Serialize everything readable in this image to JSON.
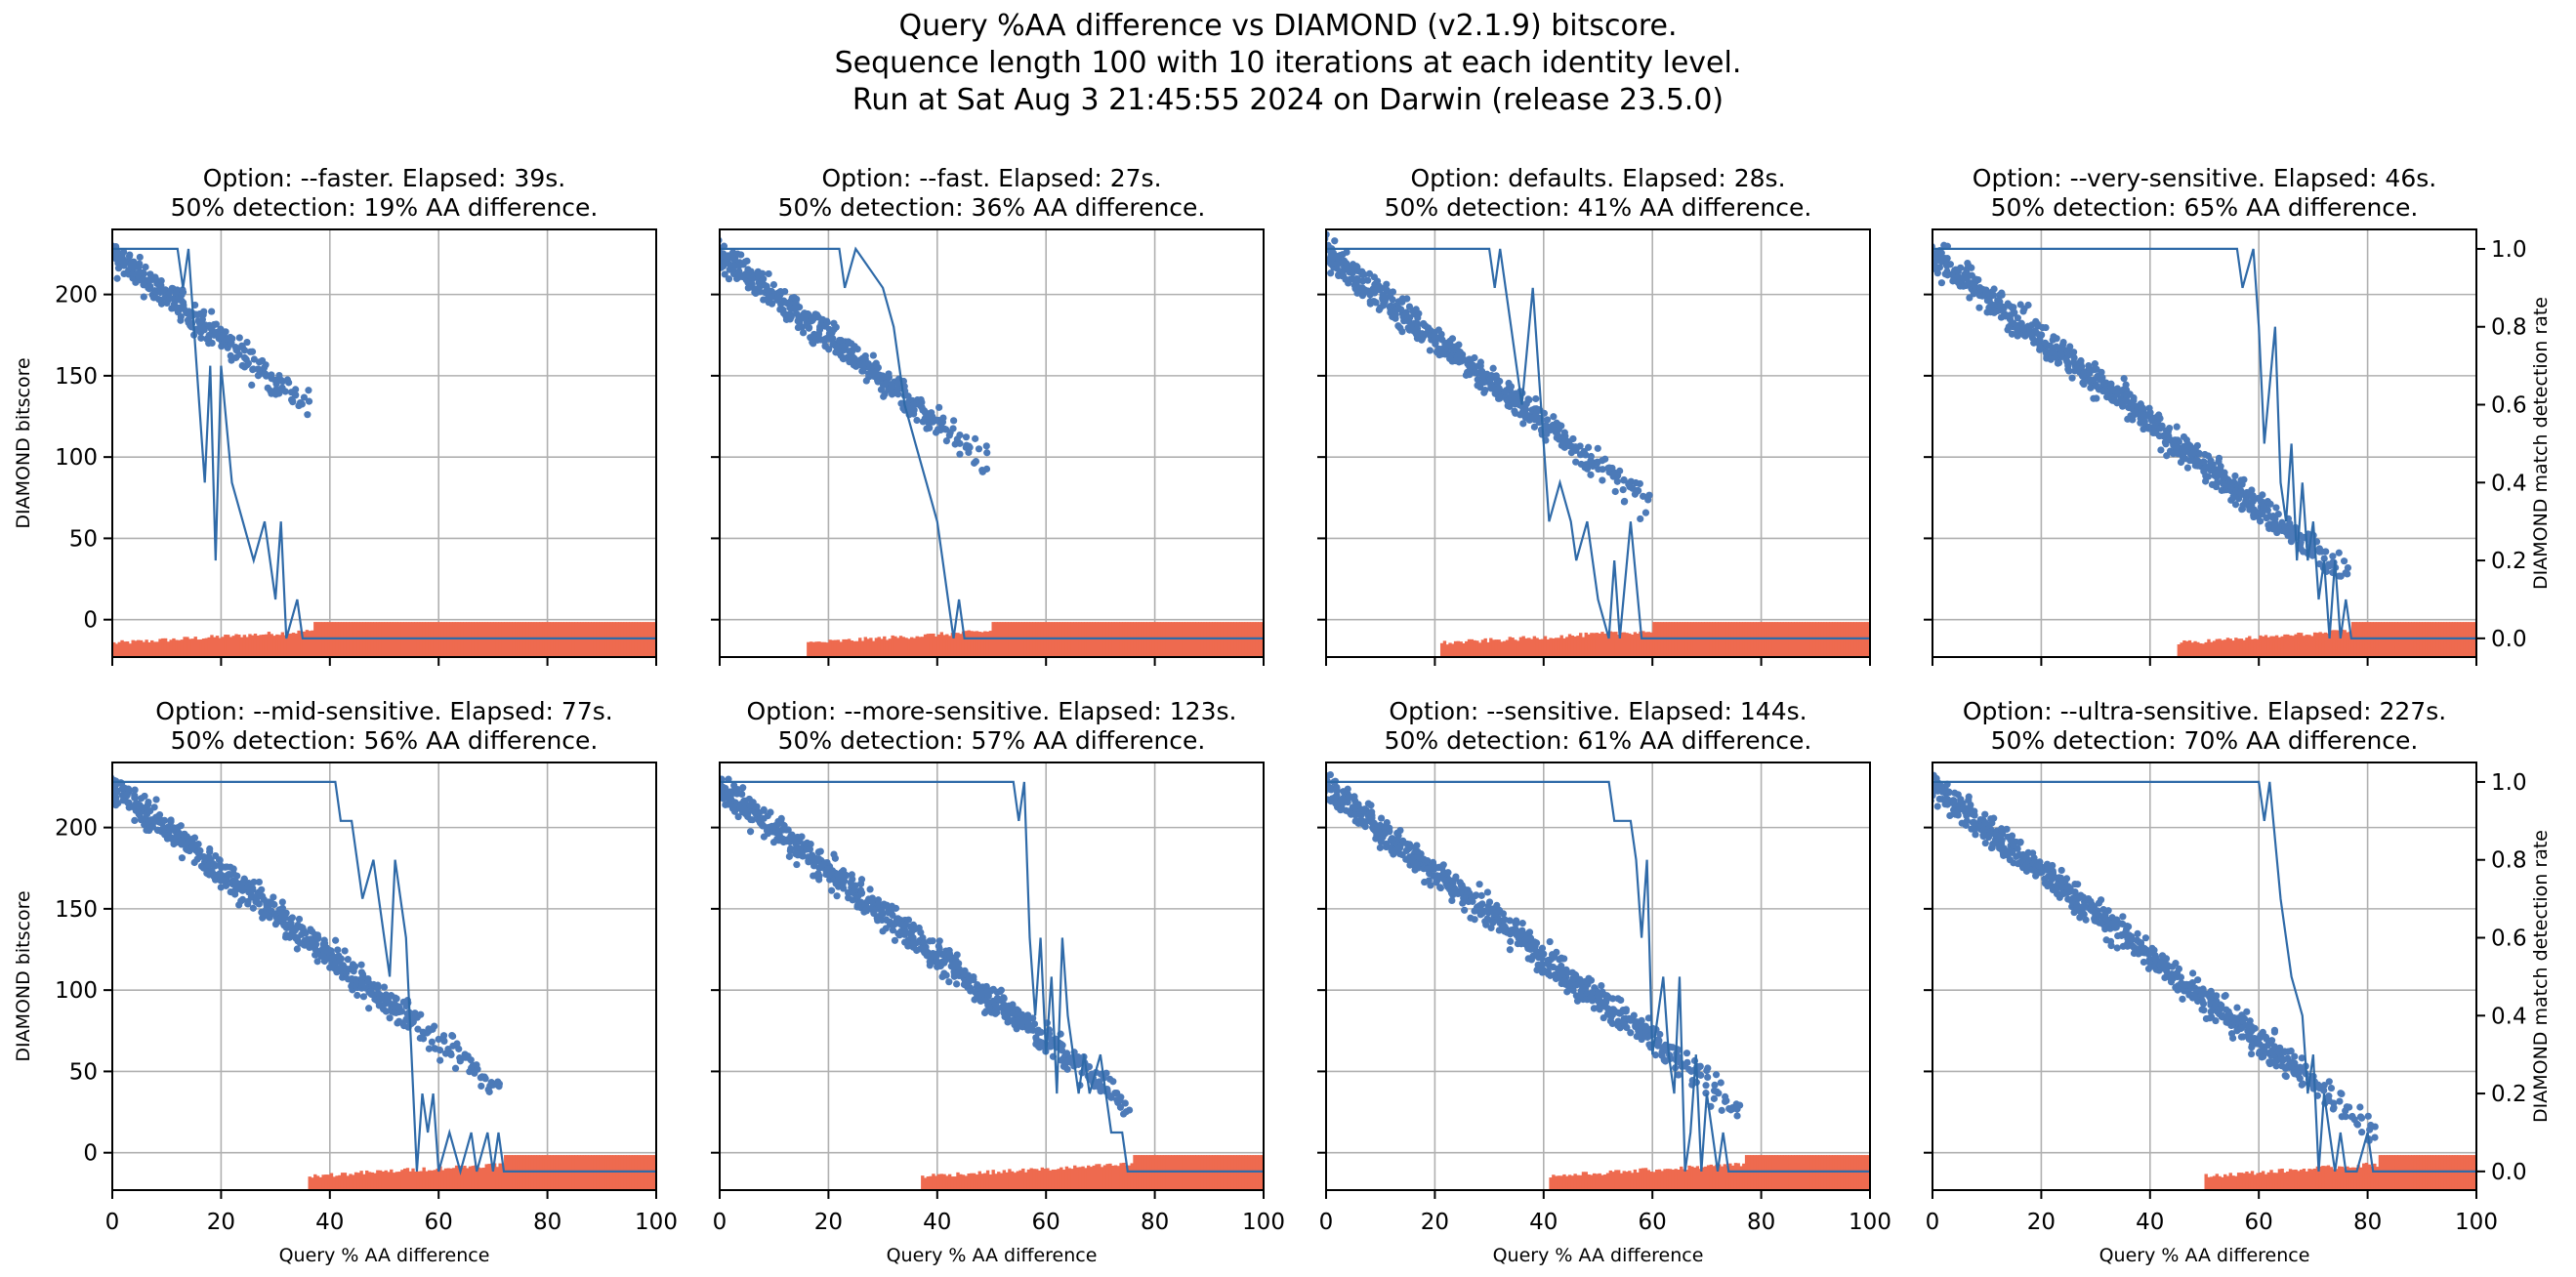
{
  "figure": {
    "suptitle": [
      "Query %AA difference vs DIAMOND (v2.1.9) bitscore.",
      "Sequence length 100 with 10 iterations at each identity level.",
      "Run at Sat Aug  3 21:45:55 2024 on Darwin (release 23.5.0)"
    ],
    "colors": {
      "scatter": "#4c7ab8",
      "line": "#2f6aa8",
      "bars": "#ee6a4f",
      "grid": "#b0b0b0"
    }
  },
  "chart_data": [
    {
      "type": "scatter+line+bar",
      "title": [
        "Option: --faster.  Elapsed: 39s.",
        "50% detection: 19% AA difference."
      ],
      "option": "--faster",
      "elapsed_s": 39,
      "detection50_pct": 19,
      "scatter_max_x": 36,
      "detection_rate": [
        [
          0,
          1.0
        ],
        [
          12,
          1.0
        ],
        [
          13,
          0.9
        ],
        [
          14,
          1.0
        ],
        [
          16,
          0.6
        ],
        [
          17,
          0.4
        ],
        [
          18,
          0.7
        ],
        [
          19,
          0.2
        ],
        [
          20,
          0.7
        ],
        [
          22,
          0.4
        ],
        [
          24,
          0.3
        ],
        [
          26,
          0.2
        ],
        [
          28,
          0.3
        ],
        [
          30,
          0.1
        ],
        [
          31,
          0.3
        ],
        [
          32,
          0.0
        ],
        [
          34,
          0.1
        ],
        [
          35,
          0.0
        ],
        [
          38,
          0.0
        ],
        [
          100,
          0.0
        ]
      ]
    },
    {
      "type": "scatter+line+bar",
      "title": [
        "Option: --fast.  Elapsed: 27s.",
        "50% detection: 36% AA difference."
      ],
      "option": "--fast",
      "elapsed_s": 27,
      "detection50_pct": 36,
      "scatter_max_x": 49,
      "detection_rate": [
        [
          0,
          1.0
        ],
        [
          22,
          1.0
        ],
        [
          23,
          0.9
        ],
        [
          25,
          1.0
        ],
        [
          30,
          0.9
        ],
        [
          32,
          0.8
        ],
        [
          34,
          0.6
        ],
        [
          36,
          0.5
        ],
        [
          38,
          0.4
        ],
        [
          40,
          0.3
        ],
        [
          41,
          0.2
        ],
        [
          42,
          0.1
        ],
        [
          43,
          0.0
        ],
        [
          44,
          0.1
        ],
        [
          45,
          0.0
        ],
        [
          48,
          0.0
        ],
        [
          100,
          0.0
        ]
      ]
    },
    {
      "type": "scatter+line+bar",
      "title": [
        "Option: defaults.  Elapsed: 28s.",
        "50% detection: 41% AA difference."
      ],
      "option": "defaults",
      "elapsed_s": 28,
      "detection50_pct": 41,
      "scatter_max_x": 59,
      "detection_rate": [
        [
          0,
          1.0
        ],
        [
          30,
          1.0
        ],
        [
          31,
          0.9
        ],
        [
          32,
          1.0
        ],
        [
          34,
          0.8
        ],
        [
          36,
          0.6
        ],
        [
          38,
          0.9
        ],
        [
          40,
          0.5
        ],
        [
          41,
          0.3
        ],
        [
          43,
          0.4
        ],
        [
          45,
          0.3
        ],
        [
          46,
          0.2
        ],
        [
          48,
          0.3
        ],
        [
          50,
          0.1
        ],
        [
          52,
          0.0
        ],
        [
          53,
          0.2
        ],
        [
          54,
          0.0
        ],
        [
          56,
          0.3
        ],
        [
          58,
          0.0
        ],
        [
          60,
          0.0
        ],
        [
          100,
          0.0
        ]
      ]
    },
    {
      "type": "scatter+line+bar",
      "title": [
        "Option: --very-sensitive.  Elapsed: 46s.",
        "50% detection: 65% AA difference."
      ],
      "option": "--very-sensitive",
      "elapsed_s": 46,
      "detection50_pct": 65,
      "scatter_max_x": 76,
      "detection_rate": [
        [
          0,
          1.0
        ],
        [
          56,
          1.0
        ],
        [
          57,
          0.9
        ],
        [
          59,
          1.0
        ],
        [
          60,
          0.8
        ],
        [
          61,
          0.5
        ],
        [
          63,
          0.8
        ],
        [
          64,
          0.4
        ],
        [
          65,
          0.3
        ],
        [
          66,
          0.5
        ],
        [
          67,
          0.2
        ],
        [
          68,
          0.4
        ],
        [
          69,
          0.2
        ],
        [
          70,
          0.3
        ],
        [
          71,
          0.1
        ],
        [
          72,
          0.2
        ],
        [
          73,
          0.0
        ],
        [
          74,
          0.2
        ],
        [
          75,
          0.0
        ],
        [
          76,
          0.1
        ],
        [
          77,
          0.0
        ],
        [
          100,
          0.0
        ]
      ]
    },
    {
      "type": "scatter+line+bar",
      "title": [
        "Option: --mid-sensitive.  Elapsed: 77s.",
        "50% detection: 56% AA difference."
      ],
      "option": "--mid-sensitive",
      "elapsed_s": 77,
      "detection50_pct": 56,
      "scatter_max_x": 71,
      "detection_rate": [
        [
          0,
          1.0
        ],
        [
          41,
          1.0
        ],
        [
          42,
          0.9
        ],
        [
          44,
          0.9
        ],
        [
          46,
          0.7
        ],
        [
          48,
          0.8
        ],
        [
          50,
          0.6
        ],
        [
          51,
          0.5
        ],
        [
          52,
          0.8
        ],
        [
          54,
          0.6
        ],
        [
          55,
          0.3
        ],
        [
          56,
          0.0
        ],
        [
          57,
          0.2
        ],
        [
          58,
          0.1
        ],
        [
          59,
          0.2
        ],
        [
          60,
          0.0
        ],
        [
          62,
          0.1
        ],
        [
          64,
          0.0
        ],
        [
          66,
          0.1
        ],
        [
          67,
          0.0
        ],
        [
          69,
          0.1
        ],
        [
          70,
          0.0
        ],
        [
          71,
          0.1
        ],
        [
          72,
          0.0
        ],
        [
          100,
          0.0
        ]
      ]
    },
    {
      "type": "scatter+line+bar",
      "title": [
        "Option: --more-sensitive.  Elapsed: 123s.",
        "50% detection: 57% AA difference."
      ],
      "option": "--more-sensitive",
      "elapsed_s": 123,
      "detection50_pct": 57,
      "scatter_max_x": 75,
      "detection_rate": [
        [
          0,
          1.0
        ],
        [
          54,
          1.0
        ],
        [
          55,
          0.9
        ],
        [
          56,
          1.0
        ],
        [
          57,
          0.6
        ],
        [
          58,
          0.4
        ],
        [
          59,
          0.6
        ],
        [
          60,
          0.3
        ],
        [
          61,
          0.5
        ],
        [
          62,
          0.2
        ],
        [
          63,
          0.6
        ],
        [
          64,
          0.4
        ],
        [
          65,
          0.3
        ],
        [
          66,
          0.2
        ],
        [
          67,
          0.3
        ],
        [
          68,
          0.2
        ],
        [
          70,
          0.3
        ],
        [
          72,
          0.1
        ],
        [
          74,
          0.1
        ],
        [
          75,
          0.0
        ],
        [
          100,
          0.0
        ]
      ]
    },
    {
      "type": "scatter+line+bar",
      "title": [
        "Option: --sensitive.  Elapsed: 144s.",
        "50% detection: 61% AA difference."
      ],
      "option": "--sensitive",
      "elapsed_s": 144,
      "detection50_pct": 61,
      "scatter_max_x": 76,
      "detection_rate": [
        [
          0,
          1.0
        ],
        [
          52,
          1.0
        ],
        [
          53,
          0.9
        ],
        [
          56,
          0.9
        ],
        [
          57,
          0.8
        ],
        [
          58,
          0.6
        ],
        [
          59,
          0.8
        ],
        [
          60,
          0.3
        ],
        [
          62,
          0.5
        ],
        [
          63,
          0.3
        ],
        [
          64,
          0.2
        ],
        [
          65,
          0.5
        ],
        [
          66,
          0.0
        ],
        [
          67,
          0.1
        ],
        [
          68,
          0.3
        ],
        [
          69,
          0.0
        ],
        [
          70,
          0.2
        ],
        [
          71,
          0.1
        ],
        [
          72,
          0.0
        ],
        [
          73,
          0.1
        ],
        [
          74,
          0.0
        ],
        [
          100,
          0.0
        ]
      ]
    },
    {
      "type": "scatter+line+bar",
      "title": [
        "Option: --ultra-sensitive.  Elapsed: 227s.",
        "50% detection: 70% AA difference."
      ],
      "option": "--ultra-sensitive",
      "elapsed_s": 227,
      "detection50_pct": 70,
      "scatter_max_x": 81,
      "detection_rate": [
        [
          0,
          1.0
        ],
        [
          60,
          1.0
        ],
        [
          61,
          0.9
        ],
        [
          62,
          1.0
        ],
        [
          64,
          0.7
        ],
        [
          66,
          0.5
        ],
        [
          68,
          0.4
        ],
        [
          69,
          0.2
        ],
        [
          70,
          0.3
        ],
        [
          71,
          0.0
        ],
        [
          72,
          0.2
        ],
        [
          73,
          0.1
        ],
        [
          74,
          0.0
        ],
        [
          75,
          0.1
        ],
        [
          76,
          0.0
        ],
        [
          78,
          0.0
        ],
        [
          80,
          0.1
        ],
        [
          81,
          0.0
        ],
        [
          100,
          0.0
        ]
      ]
    }
  ],
  "axes_common": {
    "xlabel": "Query % AA difference",
    "ylabel_left": "DIAMOND bitscore",
    "ylabel_right": "DIAMOND match detection rate",
    "xlim": [
      0,
      100
    ],
    "xticks": [
      0,
      20,
      40,
      60,
      80,
      100
    ],
    "ylim_left": [
      -23,
      240
    ],
    "yticks_left": [
      0,
      50,
      100,
      150,
      200
    ],
    "ylim_right": [
      -0.048,
      1.05
    ],
    "yticks_right": [
      "0.0",
      "0.2",
      "0.4",
      "0.6",
      "0.8",
      "1.0"
    ],
    "bitscore_fit": {
      "intercept": 225,
      "slope": -2.6
    },
    "grid": true
  }
}
